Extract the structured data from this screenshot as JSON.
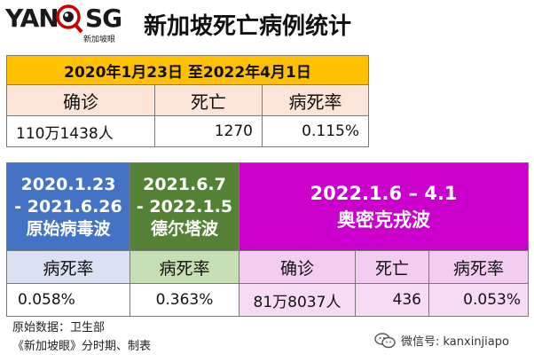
{
  "logo": {
    "part1": "YAN",
    "part2": "SG",
    "subtitle": "新加坡眼"
  },
  "title": "新加坡死亡病例统计",
  "colors": {
    "orange": "#ffc000",
    "blue": "#4472c4",
    "green": "#548235",
    "magenta": "#cc00cc"
  },
  "chart_data": {
    "type": "table",
    "overall": {
      "period": "2020年1月23日 至2022年4月1日",
      "headers": [
        "确诊",
        "死亡",
        "病死率"
      ],
      "values": [
        "110万1438人",
        "1270",
        "0.115%"
      ]
    },
    "phases": [
      {
        "period": [
          "2020.1.23",
          "- 2021.6.26"
        ],
        "name": "原始病毒波",
        "header": "病死率",
        "value": "0.058%"
      },
      {
        "period": [
          "2021.6.7",
          "- 2022.1.5"
        ],
        "name": "德尔塔波",
        "header": "病死率",
        "value": "0.363%"
      },
      {
        "period": [
          "2022.1.6 – 4.1"
        ],
        "name": "奥密克戎波",
        "headers": [
          "确诊",
          "死亡",
          "病死率"
        ],
        "values": [
          "81万8037人",
          "436",
          "0.053%"
        ]
      }
    ]
  },
  "source": {
    "line1": "原始数据：卫生部",
    "line2": "《新加坡眼》分时期、制表"
  },
  "watermark": "微信号: kanxinjiapo"
}
